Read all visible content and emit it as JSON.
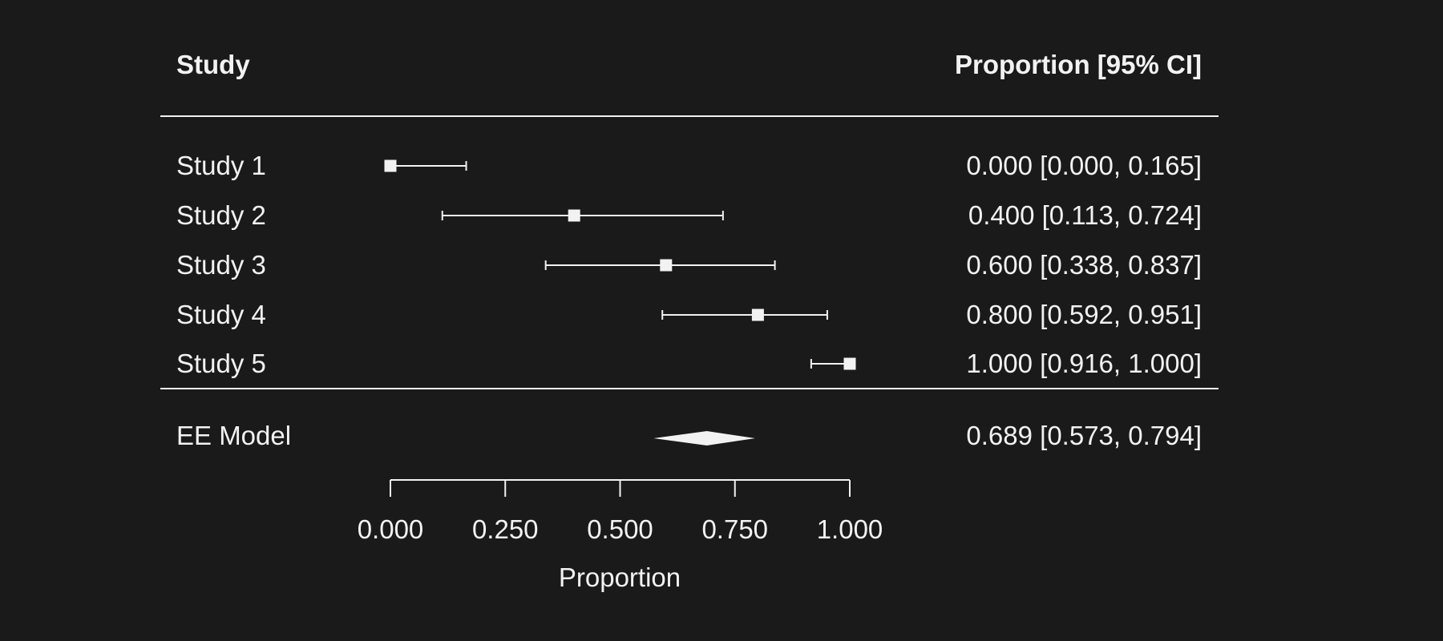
{
  "chart_data": {
    "type": "forest",
    "header": {
      "left": "Study",
      "right": "Proportion [95% CI]"
    },
    "studies": [
      {
        "label": "Study 1",
        "estimate": 0.0,
        "lower": 0.0,
        "upper": 0.165,
        "text": "0.000 [0.000, 0.165]"
      },
      {
        "label": "Study 2",
        "estimate": 0.4,
        "lower": 0.113,
        "upper": 0.724,
        "text": "0.400 [0.113, 0.724]"
      },
      {
        "label": "Study 3",
        "estimate": 0.6,
        "lower": 0.338,
        "upper": 0.837,
        "text": "0.600 [0.338, 0.837]"
      },
      {
        "label": "Study 4",
        "estimate": 0.8,
        "lower": 0.592,
        "upper": 0.951,
        "text": "0.800 [0.592, 0.951]"
      },
      {
        "label": "Study 5",
        "estimate": 1.0,
        "lower": 0.916,
        "upper": 1.0,
        "text": "1.000 [0.916, 1.000]"
      }
    ],
    "summary": {
      "label": "EE Model",
      "estimate": 0.689,
      "lower": 0.573,
      "upper": 0.794,
      "text": "0.689 [0.573, 0.794]"
    },
    "xaxis": {
      "label": "Proportion",
      "range": [
        0,
        1
      ],
      "ticks": [
        0,
        0.25,
        0.5,
        0.75,
        1.0
      ],
      "tick_labels": [
        "0.000",
        "0.250",
        "0.500",
        "0.750",
        "1.000"
      ]
    },
    "colors": {
      "background": "#1a1a1a",
      "foreground": "#f2f2f2"
    }
  }
}
